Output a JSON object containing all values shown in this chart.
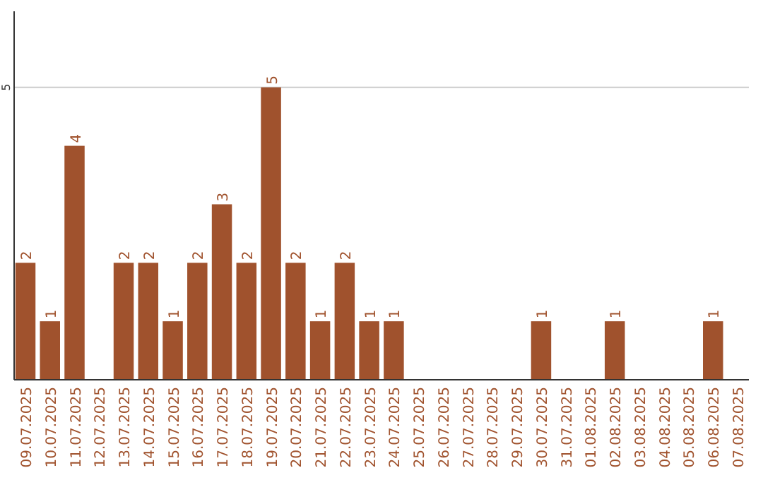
{
  "chart_data": {
    "type": "bar",
    "categories": [
      "09.07.2025",
      "10.07.2025",
      "11.07.2025",
      "12.07.2025",
      "13.07.2025",
      "14.07.2025",
      "15.07.2025",
      "16.07.2025",
      "17.07.2025",
      "18.07.2025",
      "19.07.2025",
      "20.07.2025",
      "21.07.2025",
      "22.07.2025",
      "23.07.2025",
      "24.07.2025",
      "25.07.2025",
      "26.07.2025",
      "27.07.2025",
      "28.07.2025",
      "29.07.2025",
      "30.07.2025",
      "31.07.2025",
      "01.08.2025",
      "02.08.2025",
      "03.08.2025",
      "04.08.2025",
      "05.08.2025",
      "06.08.2025",
      "07.08.2025"
    ],
    "values": [
      2,
      1,
      4,
      0,
      2,
      2,
      1,
      2,
      3,
      2,
      5,
      2,
      1,
      2,
      1,
      1,
      0,
      0,
      0,
      0,
      0,
      1,
      0,
      0,
      1,
      0,
      0,
      0,
      1,
      0
    ],
    "value_labels": [
      "2",
      "1",
      "4",
      null,
      "2",
      "2",
      "1",
      "2",
      "3",
      "2",
      "5",
      "2",
      "1",
      "2",
      "1",
      "1",
      null,
      null,
      null,
      null,
      null,
      "1",
      null,
      null,
      "1",
      null,
      null,
      null,
      "1",
      null
    ],
    "color": "#a0522d",
    "ylim": [
      0,
      6.3
    ],
    "yticks": [
      5
    ],
    "grid": "y"
  }
}
